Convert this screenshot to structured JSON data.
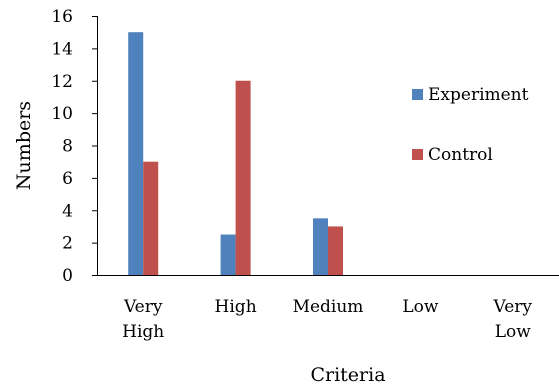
{
  "chart_data": {
    "type": "bar",
    "categories": [
      [
        "Very",
        "High"
      ],
      [
        "High"
      ],
      [
        "Medium"
      ],
      [
        "Low"
      ],
      [
        "Very",
        "Low"
      ]
    ],
    "series": [
      {
        "name": "Experiment",
        "values": [
          15,
          2.5,
          3.5,
          0,
          0
        ],
        "color": "#4F81BD"
      },
      {
        "name": "Control",
        "values": [
          7,
          12,
          3,
          0,
          0
        ],
        "color": "#C0504D"
      }
    ],
    "title": "",
    "xlabel": "Criteria",
    "ylabel": "Numbers",
    "ylim": [
      0,
      16
    ],
    "yticks": [
      0,
      2,
      4,
      6,
      8,
      10,
      12,
      14,
      16
    ],
    "grid": false,
    "legend_position": "right"
  }
}
